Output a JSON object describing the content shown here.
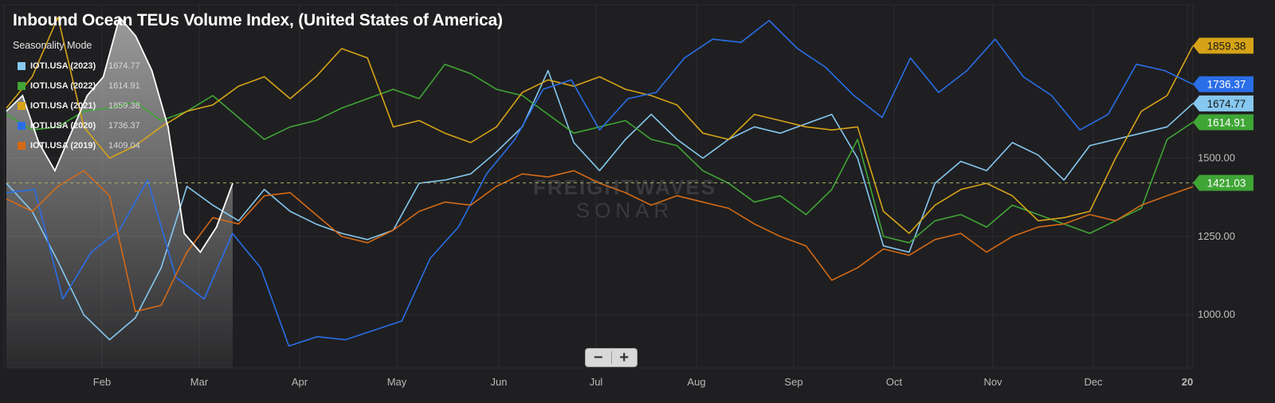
{
  "title": "Inbound Ocean TEUs Volume Index, (United States of America)",
  "subtitle": "Seasonality Mode",
  "watermark": [
    "FREIGHTWAVES",
    "SONAR"
  ],
  "zoom": {
    "minus": "−",
    "plus": "+"
  },
  "colors": {
    "background": "#1f1f21",
    "grid": "#2e2e30",
    "average_line": "#a9b06a",
    "highlight": "#ffffff"
  },
  "chart_data": {
    "type": "line",
    "x_ticks": [
      "Feb",
      "Mar",
      "Apr",
      "May",
      "Jun",
      "Jul",
      "Aug",
      "Sep",
      "Oct",
      "Nov",
      "Dec",
      "20"
    ],
    "y_ticks": [
      "1000.00",
      "1250.00",
      "1500.00"
    ],
    "ylim": [
      830,
      1990
    ],
    "reference_line": {
      "value": 1421.03,
      "label": "1421.03",
      "color": "#3fa535"
    },
    "series": [
      {
        "name": "IOTI.USA (2023)",
        "color": "#86c8f0",
        "last": "1674.77",
        "values": [
          1420,
          1330,
          1170,
          1000,
          920,
          990,
          1150,
          1410,
          1350,
          1300,
          1400,
          1330,
          1290,
          1260,
          1240,
          1270,
          1420,
          1430,
          1450,
          1520,
          1600,
          1780,
          1550,
          1460,
          1560,
          1640,
          1560,
          1500,
          1560,
          1600,
          1580,
          1610,
          1640,
          1500,
          1220,
          1200,
          1420,
          1490,
          1460,
          1550,
          1510,
          1430,
          1540,
          1560,
          1580,
          1600,
          1675
        ]
      },
      {
        "name": "IOTI.USA (2022)",
        "color": "#3fa535",
        "last": "1614.91",
        "values": [
          1640,
          1590,
          1600,
          1650,
          1660,
          1680,
          1620,
          1650,
          1700,
          1630,
          1560,
          1600,
          1620,
          1660,
          1690,
          1720,
          1690,
          1800,
          1770,
          1720,
          1700,
          1640,
          1580,
          1600,
          1620,
          1560,
          1540,
          1460,
          1420,
          1360,
          1380,
          1320,
          1400,
          1560,
          1250,
          1230,
          1300,
          1320,
          1280,
          1350,
          1320,
          1290,
          1260,
          1300,
          1340,
          1560,
          1615
        ]
      },
      {
        "name": "IOTI.USA (2021)",
        "color": "#d6a317",
        "last": "1859.38",
        "values": [
          1660,
          1760,
          1950,
          1600,
          1500,
          1540,
          1600,
          1650,
          1670,
          1730,
          1760,
          1690,
          1760,
          1850,
          1820,
          1600,
          1620,
          1580,
          1550,
          1600,
          1710,
          1750,
          1730,
          1760,
          1720,
          1700,
          1670,
          1580,
          1560,
          1640,
          1620,
          1600,
          1590,
          1600,
          1330,
          1260,
          1350,
          1400,
          1420,
          1380,
          1300,
          1310,
          1330,
          1500,
          1650,
          1700,
          1859
        ]
      },
      {
        "name": "IOTI.USA (2020)",
        "color": "#2a6ee8",
        "last": "1736.37",
        "values": [
          1390,
          1400,
          1050,
          1200,
          1270,
          1430,
          1120,
          1050,
          1260,
          1150,
          900,
          930,
          920,
          950,
          980,
          1180,
          1280,
          1450,
          1560,
          1720,
          1750,
          1590,
          1690,
          1710,
          1820,
          1880,
          1870,
          1940,
          1850,
          1790,
          1700,
          1630,
          1820,
          1710,
          1780,
          1880,
          1760,
          1700,
          1590,
          1640,
          1800,
          1780,
          1736
        ]
      },
      {
        "name": "IOTI.USA (2019)",
        "color": "#d36a17",
        "last": "1409.04",
        "values": [
          1370,
          1330,
          1410,
          1460,
          1380,
          1010,
          1030,
          1200,
          1310,
          1290,
          1380,
          1390,
          1320,
          1250,
          1230,
          1270,
          1330,
          1360,
          1350,
          1410,
          1450,
          1440,
          1460,
          1420,
          1390,
          1350,
          1380,
          1360,
          1340,
          1290,
          1250,
          1220,
          1110,
          1150,
          1210,
          1190,
          1240,
          1260,
          1200,
          1250,
          1280,
          1290,
          1320,
          1300,
          1350,
          1380,
          1409
        ]
      }
    ],
    "current_year": {
      "color": "#ffffff",
      "fill": true,
      "values": [
        1650,
        1700,
        1550,
        1460,
        1580,
        1700,
        1760,
        1950,
        1890,
        1780,
        1600,
        1260,
        1200,
        1280,
        1420
      ]
    }
  }
}
